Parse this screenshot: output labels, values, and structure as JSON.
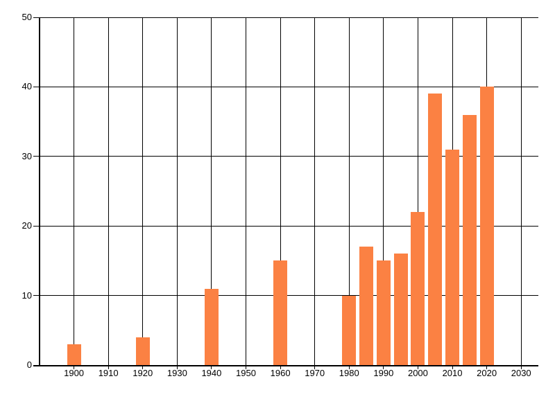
{
  "chart_data": {
    "type": "bar",
    "title": "",
    "xlabel": "",
    "ylabel": "",
    "x": [
      1900,
      1920,
      1940,
      1960,
      1980,
      1985,
      1990,
      1995,
      2000,
      2005,
      2010,
      2015,
      2020
    ],
    "values": [
      3,
      4,
      11,
      15,
      10,
      17,
      15,
      16,
      22,
      39,
      31,
      36,
      40
    ],
    "x_ticks": [
      1900,
      1910,
      1920,
      1930,
      1940,
      1950,
      1960,
      1970,
      1980,
      1990,
      2000,
      2010,
      2020,
      2030
    ],
    "x_tick_labels": [
      "1900",
      "1910",
      "1920",
      "1930",
      "1940",
      "1950",
      "1960",
      "1970",
      "1980",
      "1990",
      "2000",
      "2010",
      "2020",
      "2030"
    ],
    "y_ticks": [
      0,
      10,
      20,
      30,
      40,
      50
    ],
    "y_tick_labels": [
      "0",
      "10",
      "20",
      "30",
      "40",
      "50"
    ],
    "xlim": [
      1890,
      2035
    ],
    "ylim": [
      0,
      50
    ],
    "grid": true,
    "legend": "none",
    "colors": {
      "bar": "#fb8143",
      "grid": "#000000",
      "axis": "#000000",
      "text": "#000000",
      "background": "#ffffff"
    }
  }
}
